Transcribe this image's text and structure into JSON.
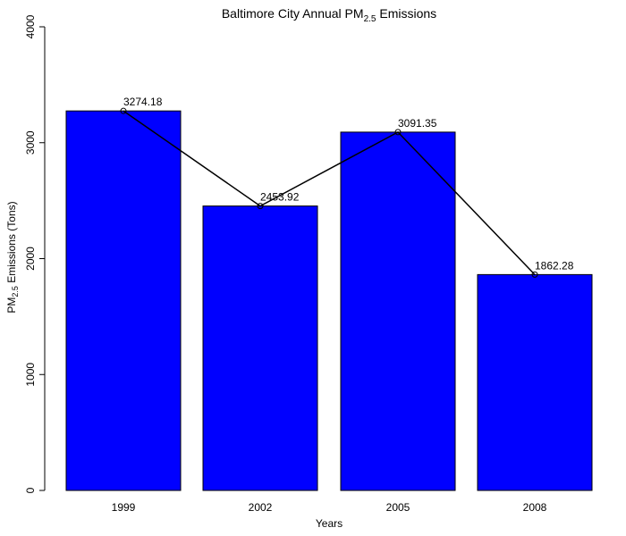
{
  "chart_data": {
    "type": "bar",
    "title": {
      "main": "Baltimore City Annual PM",
      "sub": "2.5",
      "suffix": " Emissions"
    },
    "xlabel": "Years",
    "ylabel": {
      "main": "PM",
      "sub": "2.5",
      "suffix": " Emissions (Tons)"
    },
    "categories": [
      "1999",
      "2002",
      "2005",
      "2008"
    ],
    "values": [
      3274.18,
      2453.92,
      3091.35,
      1862.28
    ],
    "value_labels": [
      "3274.18",
      "2453.92",
      "3091.35",
      "1862.28"
    ],
    "ylim": [
      0,
      4000
    ],
    "yticks": [
      0,
      1000,
      2000,
      3000,
      4000
    ],
    "ytick_labels": [
      "0",
      "1000",
      "2000",
      "3000",
      "4000"
    ],
    "overlay": "line-with-open-circle-markers",
    "grid": false,
    "legend": "none",
    "colors": {
      "bar_fill": "#0000ff",
      "bar_stroke": "#000000",
      "line": "#000000",
      "text": "#000000"
    }
  }
}
